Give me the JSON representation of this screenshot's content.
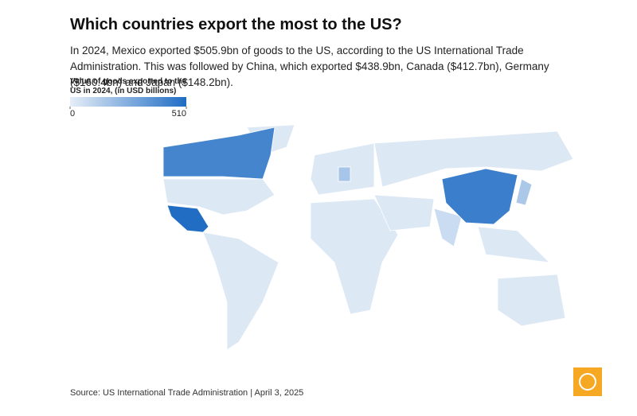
{
  "header": {
    "title": "Which countries export the most to the US?",
    "subtitle": "In 2024, Mexico exported $505.9bn of goods to the US, according to the US International Trade Administration. This was followed by China, which exported $438.9bn, Canada ($412.7bn), Germany ($160.4bn) and Japan ($148.2bn)."
  },
  "legend": {
    "title": "Value of goods exported to the US in 2024, (in USD billions)",
    "ticks": [
      0,
      510
    ],
    "colors": [
      "#e6eef8",
      "#1f6cc4"
    ]
  },
  "map": {
    "countries": [
      {
        "name": "Mexico",
        "value": 505.9
      },
      {
        "name": "China",
        "value": 438.9
      },
      {
        "name": "Canada",
        "value": 412.7
      },
      {
        "name": "Germany",
        "value": 160.4
      },
      {
        "name": "Japan",
        "value": 148.2
      }
    ]
  },
  "footer": {
    "source": "Source: US International Trade Administration | April 3, 2025"
  }
}
